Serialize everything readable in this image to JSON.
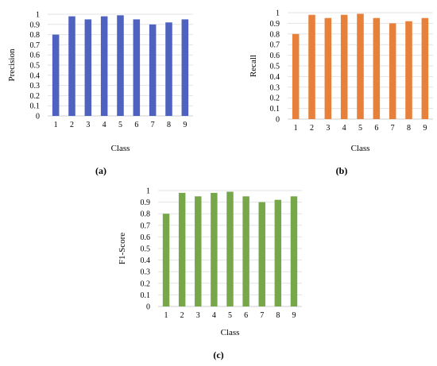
{
  "chart_data": [
    {
      "type": "bar",
      "panel_label": "(a)",
      "categories": [
        "1",
        "2",
        "3",
        "4",
        "5",
        "6",
        "7",
        "8",
        "9"
      ],
      "values": [
        0.8,
        0.98,
        0.95,
        0.98,
        0.99,
        0.95,
        0.9,
        0.92,
        0.95
      ],
      "xlabel": "Class",
      "ylabel": "Precision",
      "ylim": [
        0,
        1
      ],
      "yticks": [
        "0",
        "0.1",
        "0.2",
        "0.3",
        "0.4",
        "0.5",
        "0.6",
        "0.7",
        "0.8",
        "0.9",
        "1"
      ],
      "grid": true,
      "color": "#4f62c0"
    },
    {
      "type": "bar",
      "panel_label": "(b)",
      "categories": [
        "1",
        "2",
        "3",
        "4",
        "5",
        "6",
        "7",
        "8",
        "9"
      ],
      "values": [
        0.8,
        0.98,
        0.95,
        0.98,
        0.99,
        0.95,
        0.9,
        0.92,
        0.95
      ],
      "xlabel": "Class",
      "ylabel": "Recall",
      "ylim": [
        0,
        1
      ],
      "yticks": [
        "0",
        "0.1",
        "0.2",
        "0.3",
        "0.4",
        "0.5",
        "0.6",
        "0.7",
        "0.8",
        "0.9",
        "1"
      ],
      "grid": true,
      "color": "#e6803a"
    },
    {
      "type": "bar",
      "panel_label": "(c)",
      "categories": [
        "1",
        "2",
        "3",
        "4",
        "5",
        "6",
        "7",
        "8",
        "9"
      ],
      "values": [
        0.8,
        0.98,
        0.95,
        0.98,
        0.99,
        0.95,
        0.9,
        0.92,
        0.95
      ],
      "xlabel": "Class",
      "ylabel": "F1-Score",
      "ylim": [
        0,
        1
      ],
      "yticks": [
        "0",
        "0.1",
        "0.2",
        "0.3",
        "0.4",
        "0.5",
        "0.6",
        "0.7",
        "0.8",
        "0.9",
        "1"
      ],
      "grid": true,
      "color": "#76a84a"
    }
  ]
}
